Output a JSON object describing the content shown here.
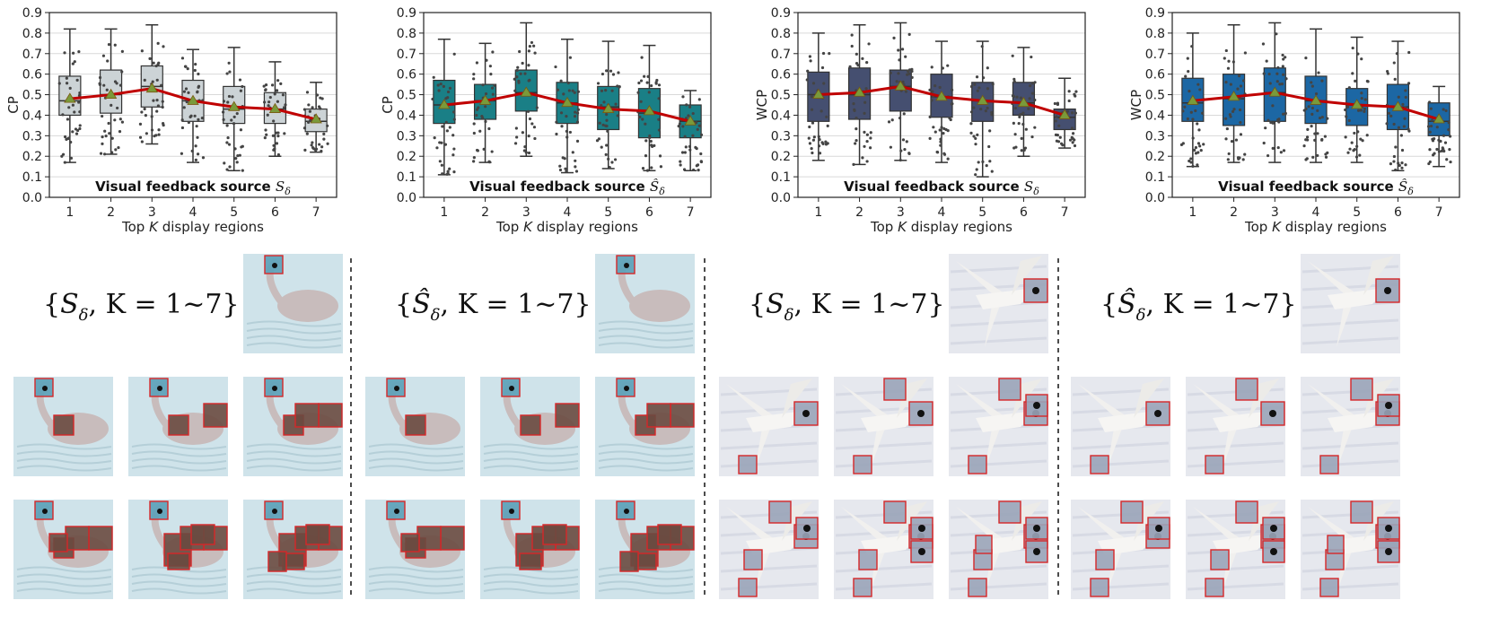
{
  "chart_data": [
    {
      "type": "box",
      "title_prefix": "Visual feedback source ",
      "title_symbol": "S",
      "title_hat": false,
      "ylabel": "CP",
      "xlabel_pre": "Top ",
      "xlabel_var": "K",
      "xlabel_post": " display regions",
      "categories": [
        "1",
        "2",
        "3",
        "4",
        "5",
        "6",
        "7"
      ],
      "ylim": [
        0,
        0.9
      ],
      "yticks": [
        "0.0",
        "0.1",
        "0.2",
        "0.3",
        "0.4",
        "0.5",
        "0.6",
        "0.7",
        "0.8",
        "0.9"
      ],
      "grid": true,
      "box_color": "#ccd3d6",
      "boxes": [
        {
          "min": 0.17,
          "q1": 0.4,
          "median": 0.47,
          "q3": 0.59,
          "max": 0.82
        },
        {
          "min": 0.21,
          "q1": 0.41,
          "median": 0.5,
          "q3": 0.62,
          "max": 0.82
        },
        {
          "min": 0.26,
          "q1": 0.44,
          "median": 0.54,
          "q3": 0.64,
          "max": 0.84
        },
        {
          "min": 0.17,
          "q1": 0.37,
          "median": 0.47,
          "q3": 0.57,
          "max": 0.72
        },
        {
          "min": 0.13,
          "q1": 0.36,
          "median": 0.43,
          "q3": 0.54,
          "max": 0.73
        },
        {
          "min": 0.2,
          "q1": 0.36,
          "median": 0.43,
          "q3": 0.51,
          "max": 0.66
        },
        {
          "min": 0.22,
          "q1": 0.32,
          "median": 0.37,
          "q3": 0.43,
          "max": 0.56
        }
      ],
      "mean_line": [
        0.48,
        0.5,
        0.53,
        0.47,
        0.44,
        0.43,
        0.38
      ]
    },
    {
      "type": "box",
      "title_prefix": "Visual feedback source ",
      "title_symbol": "S",
      "title_hat": true,
      "ylabel": "CP",
      "xlabel_pre": "Top ",
      "xlabel_var": "K",
      "xlabel_post": " display regions",
      "categories": [
        "1",
        "2",
        "3",
        "4",
        "5",
        "6",
        "7"
      ],
      "ylim": [
        0,
        0.9
      ],
      "yticks": [
        "0.0",
        "0.1",
        "0.2",
        "0.3",
        "0.4",
        "0.5",
        "0.6",
        "0.7",
        "0.8",
        "0.9"
      ],
      "grid": true,
      "box_color": "#1a7f86",
      "boxes": [
        {
          "min": 0.11,
          "q1": 0.36,
          "median": 0.45,
          "q3": 0.57,
          "max": 0.77
        },
        {
          "min": 0.17,
          "q1": 0.38,
          "median": 0.47,
          "q3": 0.55,
          "max": 0.75
        },
        {
          "min": 0.2,
          "q1": 0.42,
          "median": 0.51,
          "q3": 0.62,
          "max": 0.85
        },
        {
          "min": 0.12,
          "q1": 0.36,
          "median": 0.46,
          "q3": 0.56,
          "max": 0.77
        },
        {
          "min": 0.14,
          "q1": 0.33,
          "median": 0.44,
          "q3": 0.54,
          "max": 0.76
        },
        {
          "min": 0.13,
          "q1": 0.29,
          "median": 0.41,
          "q3": 0.53,
          "max": 0.74
        },
        {
          "min": 0.13,
          "q1": 0.29,
          "median": 0.37,
          "q3": 0.45,
          "max": 0.52
        }
      ],
      "mean_line": [
        0.45,
        0.47,
        0.51,
        0.46,
        0.43,
        0.42,
        0.37
      ]
    },
    {
      "type": "box",
      "title_prefix": "Visual feedback source ",
      "title_symbol": "S",
      "title_hat": false,
      "ylabel": "WCP",
      "xlabel_pre": "Top ",
      "xlabel_var": "K",
      "xlabel_post": " display regions",
      "categories": [
        "1",
        "2",
        "3",
        "4",
        "5",
        "6",
        "7"
      ],
      "ylim": [
        0,
        0.9
      ],
      "yticks": [
        "0.0",
        "0.1",
        "0.2",
        "0.3",
        "0.4",
        "0.5",
        "0.6",
        "0.7",
        "0.8",
        "0.9"
      ],
      "grid": true,
      "box_color": "#454f70",
      "boxes": [
        {
          "min": 0.18,
          "q1": 0.37,
          "median": 0.5,
          "q3": 0.61,
          "max": 0.8
        },
        {
          "min": 0.16,
          "q1": 0.38,
          "median": 0.5,
          "q3": 0.63,
          "max": 0.84
        },
        {
          "min": 0.18,
          "q1": 0.42,
          "median": 0.54,
          "q3": 0.62,
          "max": 0.85
        },
        {
          "min": 0.17,
          "q1": 0.39,
          "median": 0.49,
          "q3": 0.6,
          "max": 0.76
        },
        {
          "min": 0.1,
          "q1": 0.37,
          "median": 0.47,
          "q3": 0.56,
          "max": 0.76
        },
        {
          "min": 0.2,
          "q1": 0.4,
          "median": 0.46,
          "q3": 0.56,
          "max": 0.73
        },
        {
          "min": 0.24,
          "q1": 0.33,
          "median": 0.39,
          "q3": 0.43,
          "max": 0.58
        }
      ],
      "mean_line": [
        0.5,
        0.51,
        0.54,
        0.49,
        0.47,
        0.46,
        0.4
      ]
    },
    {
      "type": "box",
      "title_prefix": "Visual feedback source ",
      "title_symbol": "S",
      "title_hat": true,
      "ylabel": "WCP",
      "xlabel_pre": "Top ",
      "xlabel_var": "K",
      "xlabel_post": " display regions",
      "categories": [
        "1",
        "2",
        "3",
        "4",
        "5",
        "6",
        "7"
      ],
      "ylim": [
        0,
        0.9
      ],
      "yticks": [
        "0.0",
        "0.1",
        "0.2",
        "0.3",
        "0.4",
        "0.5",
        "0.6",
        "0.7",
        "0.8",
        "0.9"
      ],
      "grid": true,
      "box_color": "#1c67a4",
      "boxes": [
        {
          "min": 0.15,
          "q1": 0.37,
          "median": 0.46,
          "q3": 0.58,
          "max": 0.8
        },
        {
          "min": 0.17,
          "q1": 0.35,
          "median": 0.48,
          "q3": 0.6,
          "max": 0.84
        },
        {
          "min": 0.17,
          "q1": 0.37,
          "median": 0.51,
          "q3": 0.63,
          "max": 0.85
        },
        {
          "min": 0.17,
          "q1": 0.36,
          "median": 0.47,
          "q3": 0.59,
          "max": 0.82
        },
        {
          "min": 0.17,
          "q1": 0.35,
          "median": 0.45,
          "q3": 0.53,
          "max": 0.78
        },
        {
          "min": 0.13,
          "q1": 0.33,
          "median": 0.44,
          "q3": 0.55,
          "max": 0.76
        },
        {
          "min": 0.15,
          "q1": 0.3,
          "median": 0.37,
          "q3": 0.46,
          "max": 0.54
        }
      ],
      "mean_line": [
        0.47,
        0.49,
        0.51,
        0.47,
        0.45,
        0.44,
        0.38
      ]
    }
  ],
  "gallery": [
    {
      "label_pre": "{",
      "symbol": "S",
      "hat": false,
      "label_post": ", K = 1~7}",
      "image": "swan",
      "tint": "#cfe3ea"
    },
    {
      "label_pre": "{",
      "symbol": "S",
      "hat": true,
      "label_post": ", K = 1~7}",
      "image": "swan",
      "tint": "#cfe3ea"
    },
    {
      "label_pre": "{",
      "symbol": "S",
      "hat": false,
      "label_post": ", K = 1~7}",
      "image": "gull",
      "tint": "#e6e8ee"
    },
    {
      "label_pre": "{",
      "symbol": "S",
      "hat": true,
      "label_post": ", K = 1~7}",
      "image": "gull",
      "tint": "#e6e8ee"
    }
  ],
  "colors": {
    "mean_line": "#c00000",
    "mean_marker": "#7a9a3a",
    "highlight_box": "#d62728",
    "grid": "#d9d9d9",
    "dots": "#444444"
  }
}
